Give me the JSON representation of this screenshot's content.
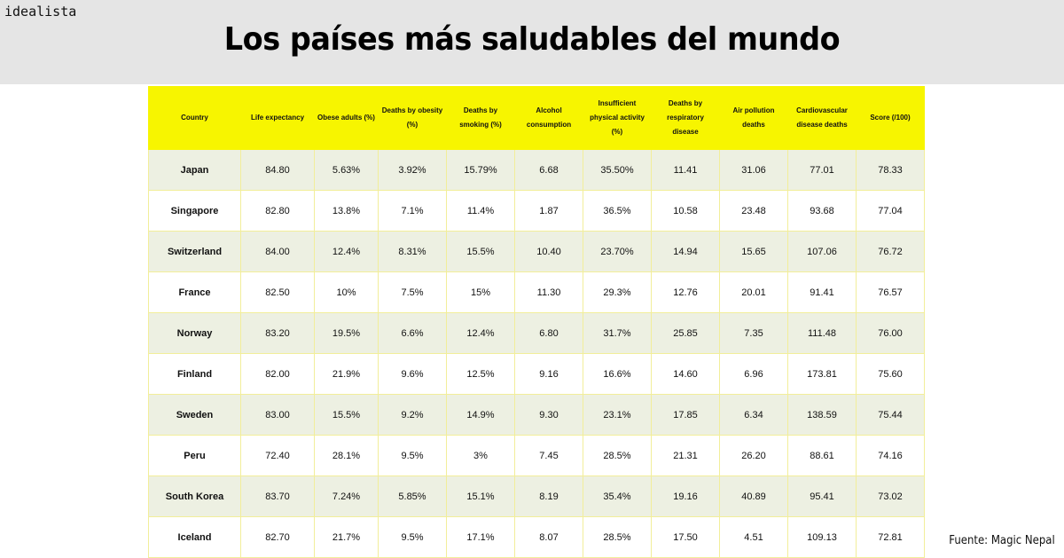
{
  "brand": {
    "logo_text": "idealista"
  },
  "header": {
    "title": "Los países más saludables del mundo"
  },
  "table": {
    "columns": [
      "Country",
      "Life expectancy",
      "Obese adults (%)",
      "Deaths by obesity (%)",
      "Deaths by smoking (%)",
      "Alcohol consumption",
      "Insufficient physical activity (%)",
      "Deaths by respiratory disease",
      "Air pollution deaths",
      "Cardiovascular disease deaths",
      "Score (/100)"
    ],
    "rows": [
      [
        "Japan",
        "84.80",
        "5.63%",
        "3.92%",
        "15.79%",
        "6.68",
        "35.50%",
        "11.41",
        "31.06",
        "77.01",
        "78.33"
      ],
      [
        "Singapore",
        "82.80",
        "13.8%",
        "7.1%",
        "11.4%",
        "1.87",
        "36.5%",
        "10.58",
        "23.48",
        "93.68",
        "77.04"
      ],
      [
        "Switzerland",
        "84.00",
        "12.4%",
        "8.31%",
        "15.5%",
        "10.40",
        "23.70%",
        "14.94",
        "15.65",
        "107.06",
        "76.72"
      ],
      [
        "France",
        "82.50",
        "10%",
        "7.5%",
        "15%",
        "11.30",
        "29.3%",
        "12.76",
        "20.01",
        "91.41",
        "76.57"
      ],
      [
        "Norway",
        "83.20",
        "19.5%",
        "6.6%",
        "12.4%",
        "6.80",
        "31.7%",
        "25.85",
        "7.35",
        "111.48",
        "76.00"
      ],
      [
        "Finland",
        "82.00",
        "21.9%",
        "9.6%",
        "12.5%",
        "9.16",
        "16.6%",
        "14.60",
        "6.96",
        "173.81",
        "75.60"
      ],
      [
        "Sweden",
        "83.00",
        "15.5%",
        "9.2%",
        "14.9%",
        "9.30",
        "23.1%",
        "17.85",
        "6.34",
        "138.59",
        "75.44"
      ],
      [
        "Peru",
        "72.40",
        "28.1%",
        "9.5%",
        "3%",
        "7.45",
        "28.5%",
        "21.31",
        "26.20",
        "88.61",
        "74.16"
      ],
      [
        "South Korea",
        "83.70",
        "7.24%",
        "5.85%",
        "15.1%",
        "8.19",
        "35.4%",
        "19.16",
        "40.89",
        "95.41",
        "73.02"
      ],
      [
        "Iceland",
        "82.70",
        "21.7%",
        "9.5%",
        "17.1%",
        "8.07",
        "28.5%",
        "17.50",
        "4.51",
        "109.13",
        "72.81"
      ]
    ]
  },
  "footer": {
    "source": "Fuente: Magic Nepal"
  },
  "colors": {
    "header_band": "#e5e5e5",
    "table_header": "#f7f500",
    "row_shaded": "#edf0e2",
    "row_plain": "#ffffff",
    "grid_line": "#f2ee9a"
  }
}
